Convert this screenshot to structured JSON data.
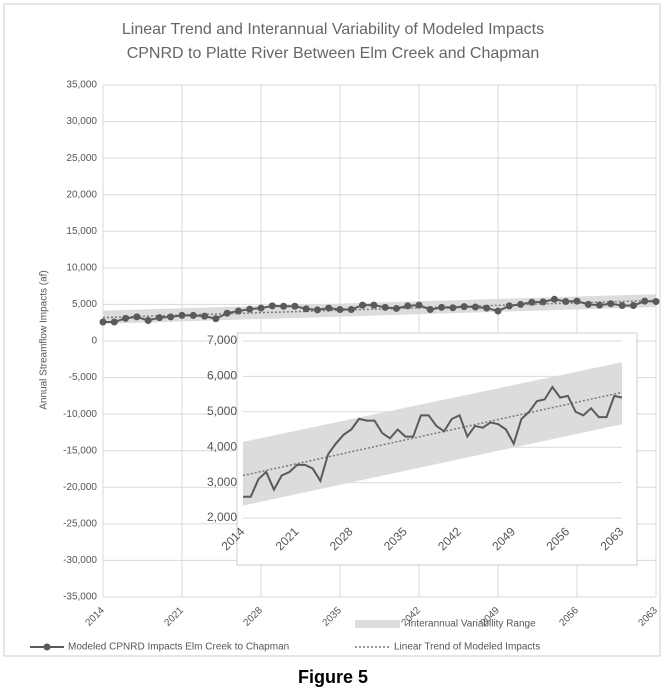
{
  "chart_data": {
    "type": "line",
    "title": [
      "Linear Trend and Interannual Variability of Modeled Impacts",
      "CPNRD to Platte River Between Elm Creek and Chapman"
    ],
    "y_label": "Annual Streamflow Impacts (af)",
    "caption": "Figure 5",
    "x": [
      2014,
      2015,
      2016,
      2017,
      2018,
      2019,
      2020,
      2021,
      2022,
      2023,
      2024,
      2025,
      2026,
      2027,
      2028,
      2029,
      2030,
      2031,
      2032,
      2033,
      2034,
      2035,
      2036,
      2037,
      2038,
      2039,
      2040,
      2041,
      2042,
      2043,
      2044,
      2045,
      2046,
      2047,
      2048,
      2049,
      2050,
      2051,
      2052,
      2053,
      2054,
      2055,
      2056,
      2057,
      2058,
      2059,
      2060,
      2061,
      2062,
      2063
    ],
    "series": [
      {
        "name": "Modeled CPNRD Impacts Elm Creek to Chapman",
        "color": "#5a5a5a",
        "values": [
          2600,
          2600,
          3100,
          3300,
          2800,
          3200,
          3300,
          3500,
          3500,
          3400,
          3050,
          3800,
          4100,
          4350,
          4500,
          4800,
          4750,
          4750,
          4400,
          4250,
          4500,
          4300,
          4300,
          4900,
          4900,
          4600,
          4450,
          4800,
          4900,
          4300,
          4600,
          4550,
          4700,
          4650,
          4500,
          4100,
          4800,
          5000,
          5300,
          5350,
          5700,
          5400,
          5450,
          5000,
          4900,
          5100,
          4850,
          4850,
          5450,
          5400
        ]
      }
    ],
    "trend": {
      "name": "Linear Trend of Modeled Impacts",
      "color": "#7a7a7a",
      "x": [
        2014,
        2063
      ],
      "values": [
        3200,
        5550
      ]
    },
    "band": {
      "name": "Interannual Variability Range",
      "color": "#dcdcdc",
      "x": [
        2014,
        2063
      ],
      "lower": [
        2350,
        4650
      ],
      "upper": [
        4150,
        6400
      ]
    },
    "xlim": [
      2014,
      2063
    ],
    "xticks": [
      2014,
      2021,
      2028,
      2035,
      2042,
      2049,
      2056,
      2063
    ],
    "ylim": [
      -35000,
      35000
    ],
    "yticks": [
      {
        "value": -35000,
        "label": "-35,000"
      },
      {
        "value": -30000,
        "label": "-30,000"
      },
      {
        "value": -25000,
        "label": "-25,000"
      },
      {
        "value": -20000,
        "label": "-20,000"
      },
      {
        "value": -15000,
        "label": "-15,000"
      },
      {
        "value": -10000,
        "label": "-10,000"
      },
      {
        "value": -5000,
        "label": "-5,000"
      },
      0,
      {
        "value": 5000,
        "label": "5,000"
      },
      {
        "value": 10000,
        "label": "10,000"
      },
      {
        "value": 15000,
        "label": "15,000"
      },
      {
        "value": 20000,
        "label": "20,000"
      },
      {
        "value": 25000,
        "label": "25,000"
      },
      {
        "value": 30000,
        "label": "30,000"
      },
      {
        "value": 35000,
        "label": "35,000"
      }
    ],
    "grid": true,
    "inset": {
      "ylim": [
        2000,
        7000
      ],
      "yticks": [
        {
          "value": 2000,
          "label": "2,000"
        },
        {
          "value": 3000,
          "label": "3,000"
        },
        {
          "value": 4000,
          "label": "4,000"
        },
        {
          "value": 5000,
          "label": "5,000"
        },
        {
          "value": 6000,
          "label": "6,000"
        },
        {
          "value": 7000,
          "label": "7,000"
        }
      ]
    }
  }
}
